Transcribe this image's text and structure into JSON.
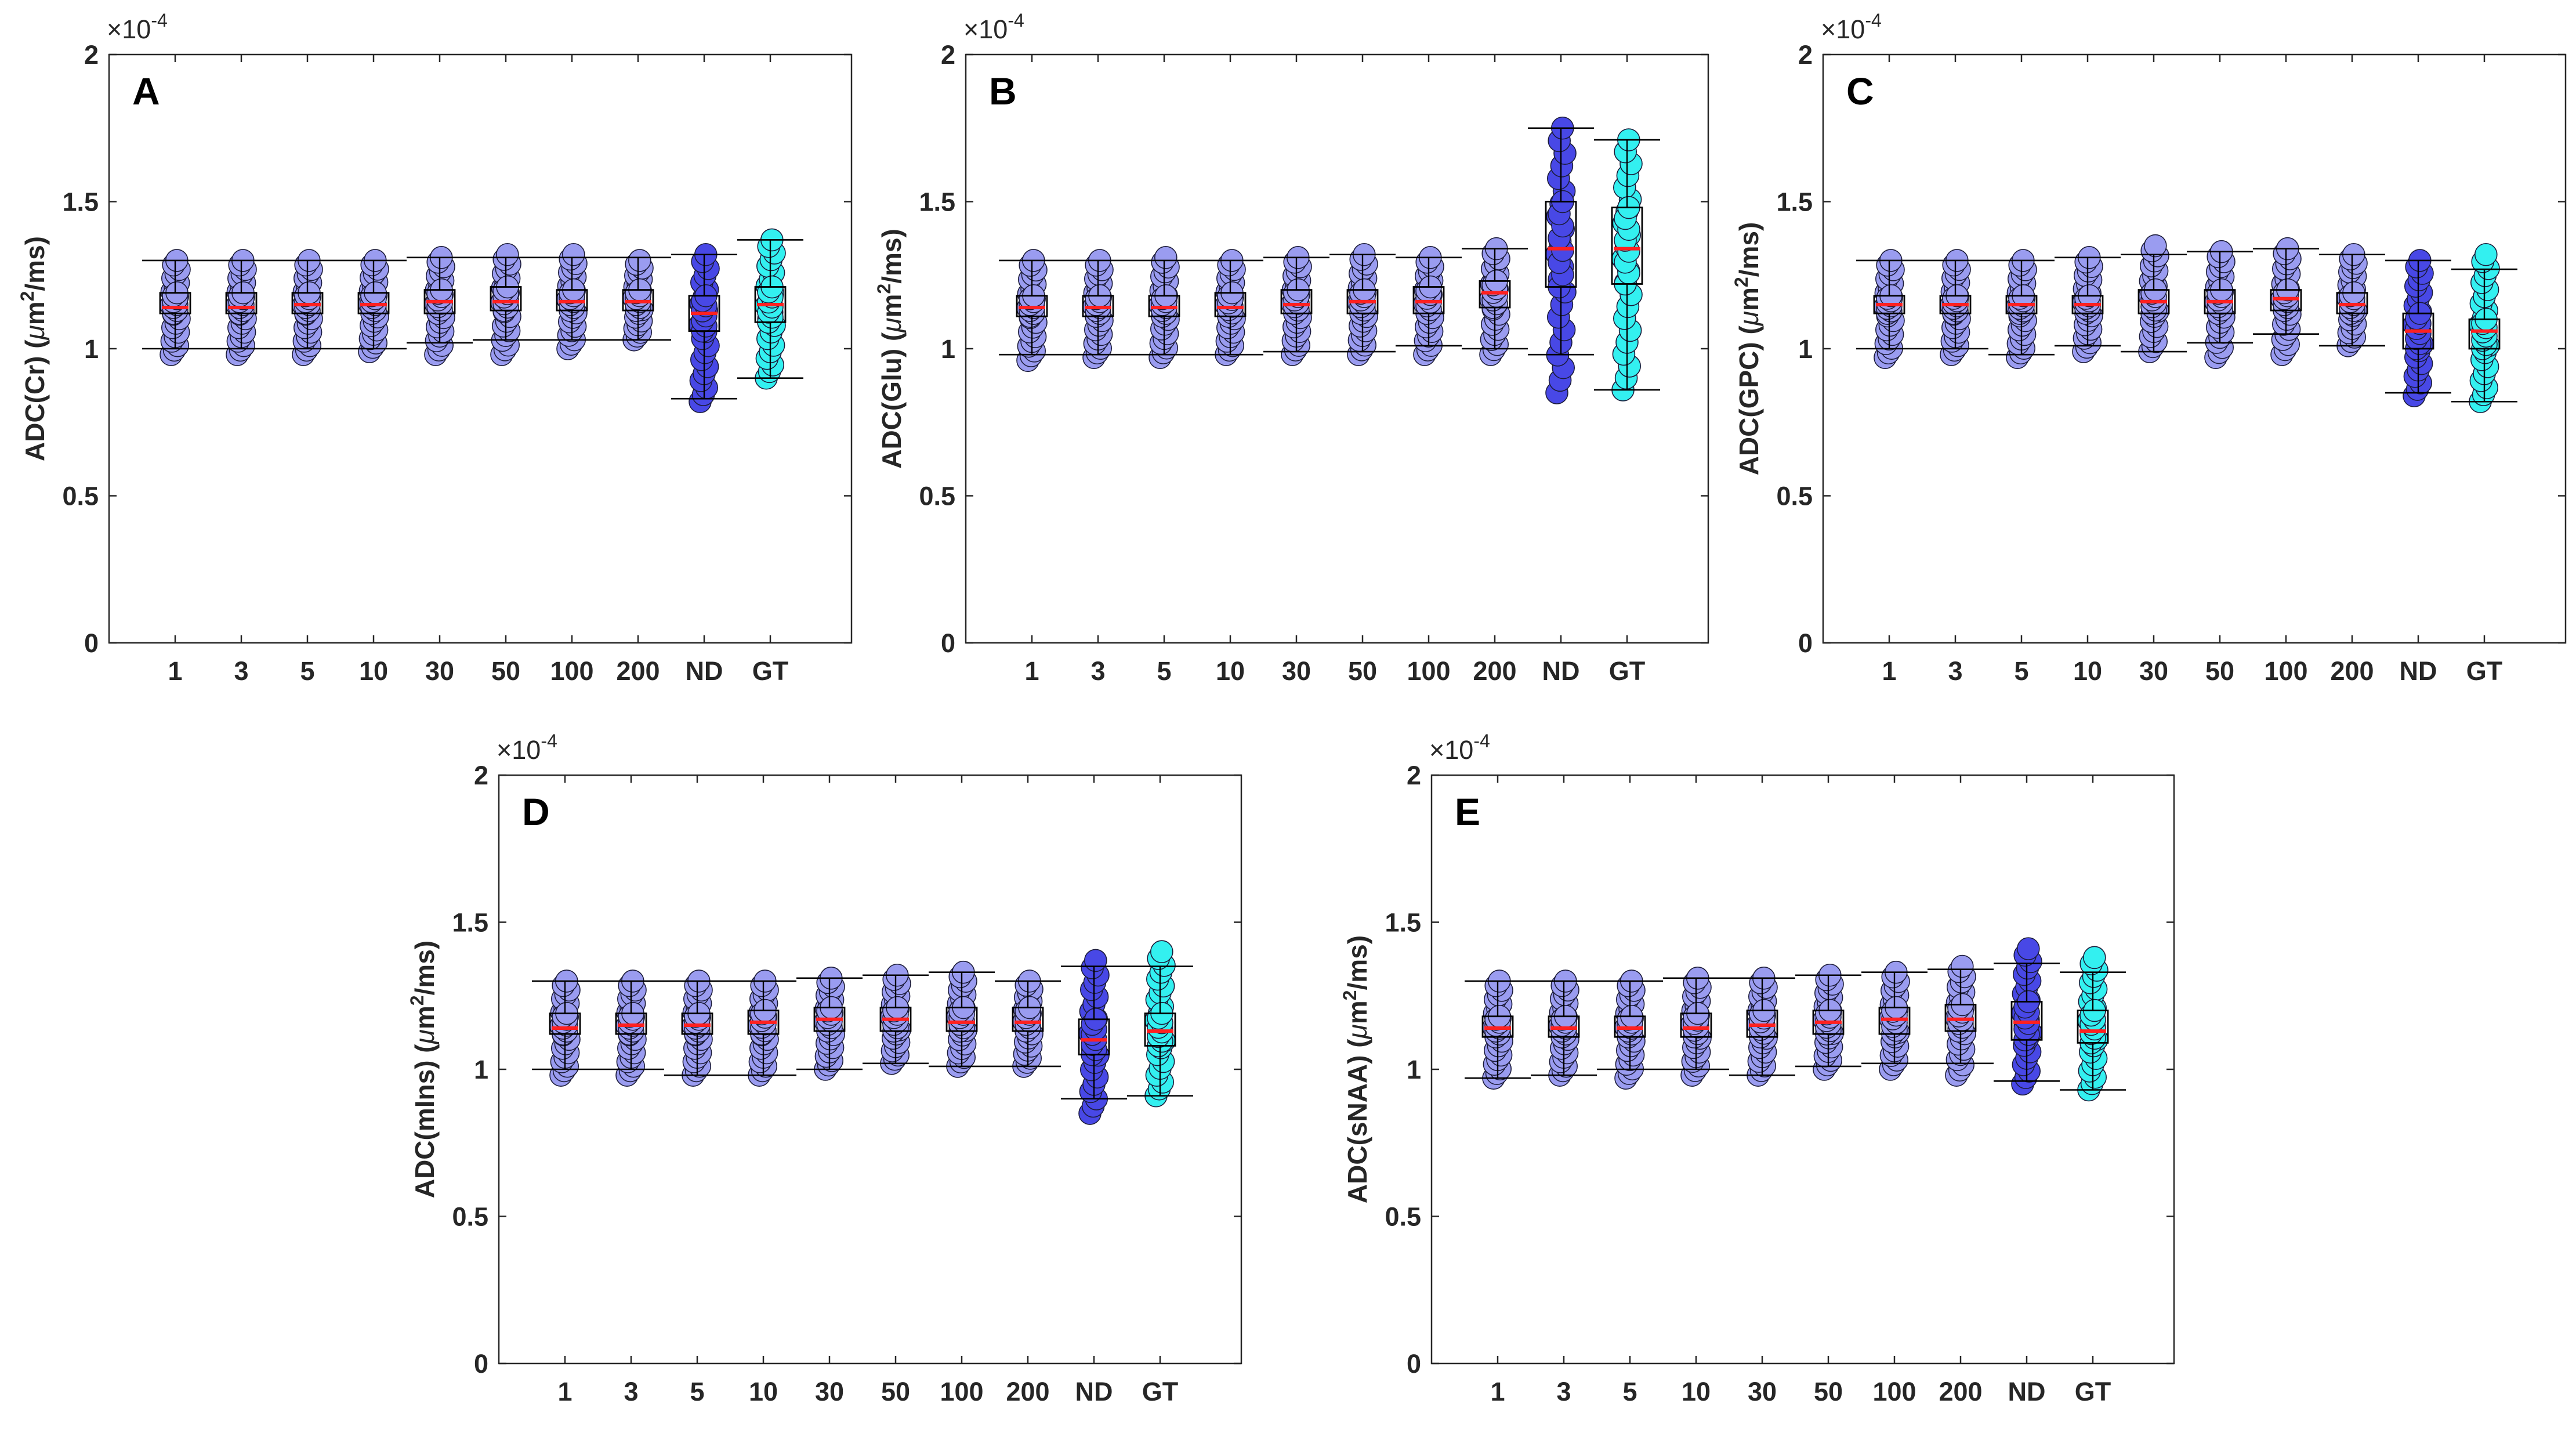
{
  "figure": {
    "categories": [
      "1",
      "3",
      "5",
      "10",
      "30",
      "50",
      "100",
      "200",
      "ND",
      "GT"
    ],
    "y_ticks": [
      "0",
      "0.5",
      "1",
      "1.5",
      "2"
    ],
    "ylim": [
      0,
      2
    ],
    "exponent_base": "×10",
    "exponent_power": "-4",
    "colors": {
      "light_fill": "#9a9cf0",
      "nd_fill": "#4848e6",
      "gt_fill": "#33f0f0",
      "median": "#ff2020",
      "box": "#000000"
    }
  },
  "chart_data": [
    {
      "type": "box",
      "panel_letter": "A",
      "ylabel_pre": "ADC(Cr) (",
      "ylabel_mu": "μ",
      "ylabel_m": "m",
      "ylabel_sup": "2",
      "ylabel_post": "/ms)",
      "boxes": [
        {
          "category": "1",
          "median": 1.14,
          "q1": 1.12,
          "q3": 1.19,
          "wlo": 1.0,
          "whi": 1.3,
          "pmin": 0.98,
          "pmax": 1.3
        },
        {
          "category": "3",
          "median": 1.14,
          "q1": 1.12,
          "q3": 1.19,
          "wlo": 1.0,
          "whi": 1.3,
          "pmin": 0.98,
          "pmax": 1.3
        },
        {
          "category": "5",
          "median": 1.15,
          "q1": 1.12,
          "q3": 1.19,
          "wlo": 1.0,
          "whi": 1.3,
          "pmin": 0.98,
          "pmax": 1.3
        },
        {
          "category": "10",
          "median": 1.15,
          "q1": 1.12,
          "q3": 1.19,
          "wlo": 1.0,
          "whi": 1.3,
          "pmin": 0.99,
          "pmax": 1.3
        },
        {
          "category": "30",
          "median": 1.16,
          "q1": 1.12,
          "q3": 1.2,
          "wlo": 1.02,
          "whi": 1.31,
          "pmin": 0.98,
          "pmax": 1.31
        },
        {
          "category": "50",
          "median": 1.16,
          "q1": 1.13,
          "q3": 1.21,
          "wlo": 1.03,
          "whi": 1.31,
          "pmin": 0.98,
          "pmax": 1.32
        },
        {
          "category": "100",
          "median": 1.16,
          "q1": 1.13,
          "q3": 1.2,
          "wlo": 1.03,
          "whi": 1.31,
          "pmin": 1.0,
          "pmax": 1.32
        },
        {
          "category": "200",
          "median": 1.16,
          "q1": 1.13,
          "q3": 1.2,
          "wlo": 1.03,
          "whi": 1.31,
          "pmin": 1.03,
          "pmax": 1.3
        },
        {
          "category": "ND",
          "median": 1.12,
          "q1": 1.06,
          "q3": 1.18,
          "wlo": 0.83,
          "whi": 1.32,
          "pmin": 0.82,
          "pmax": 1.32
        },
        {
          "category": "GT",
          "median": 1.15,
          "q1": 1.09,
          "q3": 1.21,
          "wlo": 0.9,
          "whi": 1.37,
          "pmin": 0.9,
          "pmax": 1.37
        }
      ]
    },
    {
      "type": "box",
      "panel_letter": "B",
      "ylabel_pre": "ADC(Glu) (",
      "ylabel_mu": "μ",
      "ylabel_m": "m",
      "ylabel_sup": "2",
      "ylabel_post": "/ms)",
      "boxes": [
        {
          "category": "1",
          "median": 1.14,
          "q1": 1.11,
          "q3": 1.18,
          "wlo": 0.98,
          "whi": 1.3,
          "pmin": 0.96,
          "pmax": 1.3
        },
        {
          "category": "3",
          "median": 1.14,
          "q1": 1.11,
          "q3": 1.18,
          "wlo": 0.98,
          "whi": 1.3,
          "pmin": 0.97,
          "pmax": 1.3
        },
        {
          "category": "5",
          "median": 1.14,
          "q1": 1.11,
          "q3": 1.18,
          "wlo": 0.98,
          "whi": 1.3,
          "pmin": 0.97,
          "pmax": 1.31
        },
        {
          "category": "10",
          "median": 1.14,
          "q1": 1.11,
          "q3": 1.19,
          "wlo": 0.98,
          "whi": 1.3,
          "pmin": 0.98,
          "pmax": 1.3
        },
        {
          "category": "30",
          "median": 1.15,
          "q1": 1.12,
          "q3": 1.2,
          "wlo": 0.99,
          "whi": 1.31,
          "pmin": 0.98,
          "pmax": 1.31
        },
        {
          "category": "50",
          "median": 1.16,
          "q1": 1.12,
          "q3": 1.2,
          "wlo": 0.99,
          "whi": 1.32,
          "pmin": 0.98,
          "pmax": 1.32
        },
        {
          "category": "100",
          "median": 1.16,
          "q1": 1.12,
          "q3": 1.21,
          "wlo": 1.01,
          "whi": 1.31,
          "pmin": 0.98,
          "pmax": 1.31
        },
        {
          "category": "200",
          "median": 1.19,
          "q1": 1.14,
          "q3": 1.23,
          "wlo": 1.0,
          "whi": 1.34,
          "pmin": 0.98,
          "pmax": 1.34
        },
        {
          "category": "ND",
          "median": 1.34,
          "q1": 1.21,
          "q3": 1.5,
          "wlo": 0.98,
          "whi": 1.75,
          "pmin": 0.85,
          "pmax": 1.75
        },
        {
          "category": "GT",
          "median": 1.34,
          "q1": 1.22,
          "q3": 1.48,
          "wlo": 0.86,
          "whi": 1.71,
          "pmin": 0.86,
          "pmax": 1.71
        }
      ]
    },
    {
      "type": "box",
      "panel_letter": "C",
      "ylabel_pre": "ADC(GPC) (",
      "ylabel_mu": "μ",
      "ylabel_m": "m",
      "ylabel_sup": "2",
      "ylabel_post": "/ms)",
      "boxes": [
        {
          "category": "1",
          "median": 1.15,
          "q1": 1.12,
          "q3": 1.18,
          "wlo": 1.0,
          "whi": 1.3,
          "pmin": 0.97,
          "pmax": 1.3
        },
        {
          "category": "3",
          "median": 1.15,
          "q1": 1.12,
          "q3": 1.18,
          "wlo": 1.0,
          "whi": 1.3,
          "pmin": 0.98,
          "pmax": 1.3
        },
        {
          "category": "5",
          "median": 1.15,
          "q1": 1.12,
          "q3": 1.18,
          "wlo": 0.98,
          "whi": 1.3,
          "pmin": 0.97,
          "pmax": 1.3
        },
        {
          "category": "10",
          "median": 1.15,
          "q1": 1.12,
          "q3": 1.18,
          "wlo": 1.01,
          "whi": 1.31,
          "pmin": 0.99,
          "pmax": 1.31
        },
        {
          "category": "30",
          "median": 1.16,
          "q1": 1.12,
          "q3": 1.2,
          "wlo": 0.99,
          "whi": 1.32,
          "pmin": 0.99,
          "pmax": 1.35
        },
        {
          "category": "50",
          "median": 1.16,
          "q1": 1.12,
          "q3": 1.2,
          "wlo": 1.02,
          "whi": 1.33,
          "pmin": 0.97,
          "pmax": 1.33
        },
        {
          "category": "100",
          "median": 1.17,
          "q1": 1.13,
          "q3": 1.2,
          "wlo": 1.05,
          "whi": 1.34,
          "pmin": 0.98,
          "pmax": 1.34
        },
        {
          "category": "200",
          "median": 1.15,
          "q1": 1.12,
          "q3": 1.19,
          "wlo": 1.01,
          "whi": 1.32,
          "pmin": 1.01,
          "pmax": 1.32
        },
        {
          "category": "ND",
          "median": 1.06,
          "q1": 1.0,
          "q3": 1.12,
          "wlo": 0.85,
          "whi": 1.3,
          "pmin": 0.84,
          "pmax": 1.3
        },
        {
          "category": "GT",
          "median": 1.06,
          "q1": 1.0,
          "q3": 1.1,
          "wlo": 0.82,
          "whi": 1.27,
          "pmin": 0.82,
          "pmax": 1.32
        }
      ]
    },
    {
      "type": "box",
      "panel_letter": "D",
      "ylabel_pre": "ADC(mIns) (",
      "ylabel_mu": "μ",
      "ylabel_m": "m",
      "ylabel_sup": "2",
      "ylabel_post": "/ms)",
      "boxes": [
        {
          "category": "1",
          "median": 1.14,
          "q1": 1.12,
          "q3": 1.19,
          "wlo": 1.0,
          "whi": 1.3,
          "pmin": 0.98,
          "pmax": 1.3
        },
        {
          "category": "3",
          "median": 1.15,
          "q1": 1.12,
          "q3": 1.19,
          "wlo": 1.0,
          "whi": 1.3,
          "pmin": 0.98,
          "pmax": 1.3
        },
        {
          "category": "5",
          "median": 1.15,
          "q1": 1.12,
          "q3": 1.19,
          "wlo": 0.98,
          "whi": 1.3,
          "pmin": 0.98,
          "pmax": 1.3
        },
        {
          "category": "10",
          "median": 1.16,
          "q1": 1.12,
          "q3": 1.2,
          "wlo": 0.98,
          "whi": 1.3,
          "pmin": 0.98,
          "pmax": 1.3
        },
        {
          "category": "30",
          "median": 1.17,
          "q1": 1.13,
          "q3": 1.21,
          "wlo": 1.0,
          "whi": 1.31,
          "pmin": 1.0,
          "pmax": 1.31
        },
        {
          "category": "50",
          "median": 1.17,
          "q1": 1.13,
          "q3": 1.21,
          "wlo": 1.02,
          "whi": 1.32,
          "pmin": 1.02,
          "pmax": 1.32
        },
        {
          "category": "100",
          "median": 1.16,
          "q1": 1.13,
          "q3": 1.21,
          "wlo": 1.01,
          "whi": 1.33,
          "pmin": 1.01,
          "pmax": 1.33
        },
        {
          "category": "200",
          "median": 1.16,
          "q1": 1.13,
          "q3": 1.21,
          "wlo": 1.01,
          "whi": 1.3,
          "pmin": 1.01,
          "pmax": 1.3
        },
        {
          "category": "ND",
          "median": 1.1,
          "q1": 1.05,
          "q3": 1.17,
          "wlo": 0.9,
          "whi": 1.35,
          "pmin": 0.85,
          "pmax": 1.37
        },
        {
          "category": "GT",
          "median": 1.13,
          "q1": 1.08,
          "q3": 1.19,
          "wlo": 0.91,
          "whi": 1.35,
          "pmin": 0.91,
          "pmax": 1.4
        }
      ]
    },
    {
      "type": "box",
      "panel_letter": "E",
      "ylabel_pre": "ADC(sNAA) (",
      "ylabel_mu": "μ",
      "ylabel_m": "m",
      "ylabel_sup": "2",
      "ylabel_post": "/ms)",
      "boxes": [
        {
          "category": "1",
          "median": 1.14,
          "q1": 1.11,
          "q3": 1.18,
          "wlo": 0.97,
          "whi": 1.3,
          "pmin": 0.97,
          "pmax": 1.3
        },
        {
          "category": "3",
          "median": 1.14,
          "q1": 1.11,
          "q3": 1.18,
          "wlo": 0.98,
          "whi": 1.3,
          "pmin": 0.98,
          "pmax": 1.3
        },
        {
          "category": "5",
          "median": 1.14,
          "q1": 1.11,
          "q3": 1.18,
          "wlo": 1.0,
          "whi": 1.3,
          "pmin": 0.97,
          "pmax": 1.3
        },
        {
          "category": "10",
          "median": 1.14,
          "q1": 1.11,
          "q3": 1.19,
          "wlo": 1.0,
          "whi": 1.31,
          "pmin": 0.98,
          "pmax": 1.31
        },
        {
          "category": "30",
          "median": 1.15,
          "q1": 1.11,
          "q3": 1.2,
          "wlo": 0.98,
          "whi": 1.31,
          "pmin": 0.98,
          "pmax": 1.31
        },
        {
          "category": "50",
          "median": 1.16,
          "q1": 1.12,
          "q3": 1.2,
          "wlo": 1.01,
          "whi": 1.32,
          "pmin": 1.0,
          "pmax": 1.32
        },
        {
          "category": "100",
          "median": 1.17,
          "q1": 1.12,
          "q3": 1.21,
          "wlo": 1.02,
          "whi": 1.33,
          "pmin": 1.0,
          "pmax": 1.33
        },
        {
          "category": "200",
          "median": 1.17,
          "q1": 1.13,
          "q3": 1.22,
          "wlo": 1.02,
          "whi": 1.34,
          "pmin": 0.98,
          "pmax": 1.35
        },
        {
          "category": "ND",
          "median": 1.16,
          "q1": 1.1,
          "q3": 1.23,
          "wlo": 0.96,
          "whi": 1.36,
          "pmin": 0.95,
          "pmax": 1.41
        },
        {
          "category": "GT",
          "median": 1.13,
          "q1": 1.09,
          "q3": 1.2,
          "wlo": 0.93,
          "whi": 1.33,
          "pmin": 0.93,
          "pmax": 1.38
        }
      ]
    }
  ]
}
